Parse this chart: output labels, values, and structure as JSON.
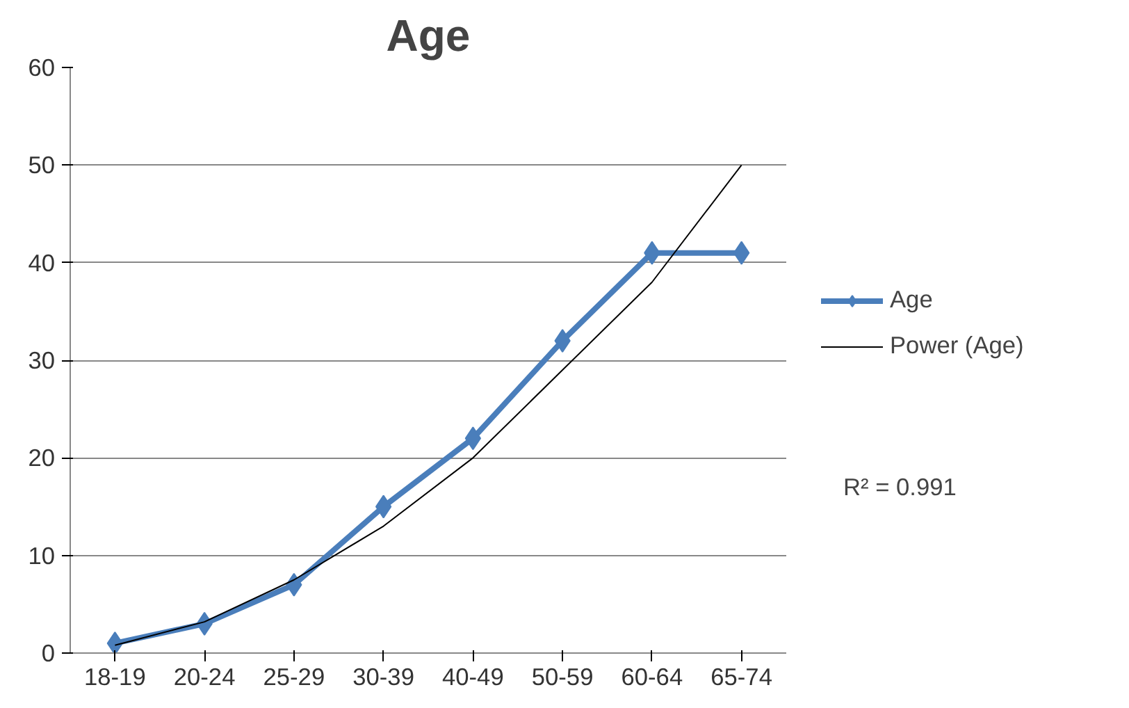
{
  "chart_data": {
    "type": "line",
    "title": "Age",
    "categories": [
      "18-19",
      "20-24",
      "25-29",
      "30-39",
      "40-49",
      "50-59",
      "60-64",
      "65-74"
    ],
    "series": [
      {
        "name": "Age",
        "color": "#4a7ebb",
        "values": [
          1,
          3,
          7,
          15,
          22,
          32,
          41,
          41
        ],
        "marker": "diamond",
        "line_style": "solid"
      },
      {
        "name": "Power (Age)",
        "color": "#000000",
        "values": [
          0.8,
          3.2,
          7.5,
          13,
          20,
          29,
          38,
          50
        ],
        "marker": "none",
        "line_style": "solid"
      }
    ],
    "ylim": [
      0,
      60
    ],
    "yticks": [
      0,
      10,
      20,
      30,
      40,
      50,
      60
    ],
    "grid": "y",
    "legend": "right",
    "annotations": [
      "R² = 0.991"
    ]
  }
}
